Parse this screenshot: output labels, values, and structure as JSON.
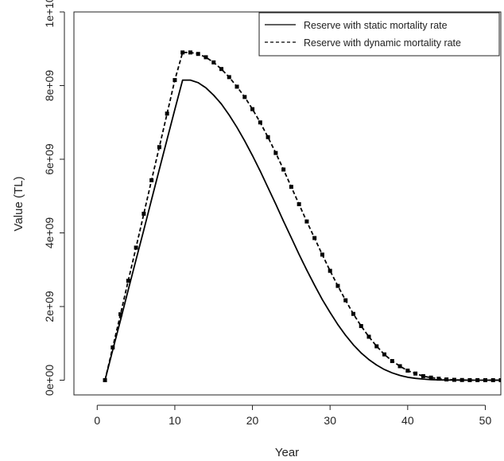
{
  "chart_data": {
    "type": "line",
    "title": "",
    "xlabel": "Year",
    "ylabel": "Value (TL)",
    "xlim": [
      -3.0,
      52.0
    ],
    "ylim": [
      -400000000.0,
      10000000000.0
    ],
    "x_ticks": [
      0,
      10,
      20,
      30,
      40,
      50
    ],
    "x_tick_labels": [
      "0",
      "10",
      "20",
      "30",
      "40",
      "50"
    ],
    "y_ticks": [
      0,
      2000000000,
      4000000000,
      6000000000,
      8000000000,
      10000000000
    ],
    "y_tick_labels": [
      "0e+00",
      "2e+09",
      "4e+09",
      "6e+09",
      "8e+09",
      "1e+10"
    ],
    "grid": false,
    "legend_position": "top-right",
    "x": [
      1,
      2,
      3,
      4,
      5,
      6,
      7,
      8,
      9,
      10,
      11,
      12,
      13,
      14,
      15,
      16,
      17,
      18,
      19,
      20,
      21,
      22,
      23,
      24,
      25,
      26,
      27,
      28,
      29,
      30,
      31,
      32,
      33,
      34,
      35,
      36,
      37,
      38,
      39,
      40,
      41,
      42,
      43,
      44,
      45,
      46,
      47,
      48,
      49,
      50,
      51,
      52
    ],
    "series": [
      {
        "name": "Reserve with static mortality rate",
        "line_style": "solid",
        "markers": false,
        "values": [
          0,
          820000000.0,
          1630000000.0,
          2450000000.0,
          3270000000.0,
          4080000000.0,
          4900000000.0,
          5720000000.0,
          6540000000.0,
          7350000000.0,
          8150000000.0,
          8150000000.0,
          8080000000.0,
          7940000000.0,
          7740000000.0,
          7500000000.0,
          7200000000.0,
          6870000000.0,
          6500000000.0,
          6100000000.0,
          5680000000.0,
          5230000000.0,
          4780000000.0,
          4320000000.0,
          3870000000.0,
          3420000000.0,
          2990000000.0,
          2580000000.0,
          2190000000.0,
          1840000000.0,
          1510000000.0,
          1220000000.0,
          960000000.0,
          740000000.0,
          560000000.0,
          410000000.0,
          290000000.0,
          200000000.0,
          130000000.0,
          80000000.0,
          50000000.0,
          30000000.0,
          15000000.0,
          8000000.0,
          4000000.0,
          2000000.0,
          1000000.0,
          0,
          0,
          0,
          0,
          0
        ]
      },
      {
        "name": "Reserve with dynamic mortality rate",
        "line_style": "dashed",
        "markers": true,
        "values": [
          0,
          890000000.0,
          1790000000.0,
          2700000000.0,
          3600000000.0,
          4520000000.0,
          5430000000.0,
          6330000000.0,
          7240000000.0,
          8150000000.0,
          8900000000.0,
          8900000000.0,
          8860000000.0,
          8770000000.0,
          8630000000.0,
          8450000000.0,
          8230000000.0,
          7970000000.0,
          7690000000.0,
          7360000000.0,
          7000000000.0,
          6600000000.0,
          6170000000.0,
          5720000000.0,
          5250000000.0,
          4780000000.0,
          4310000000.0,
          3860000000.0,
          3410000000.0,
          2970000000.0,
          2560000000.0,
          2170000000.0,
          1800000000.0,
          1470000000.0,
          1180000000.0,
          920000000.0,
          700000000.0,
          520000000.0,
          380000000.0,
          260000000.0,
          180000000.0,
          110000000.0,
          70000000.0,
          40000000.0,
          20000000.0,
          10000000.0,
          5000000.0,
          2000000.0,
          1000000.0,
          0,
          0,
          0
        ]
      }
    ]
  }
}
